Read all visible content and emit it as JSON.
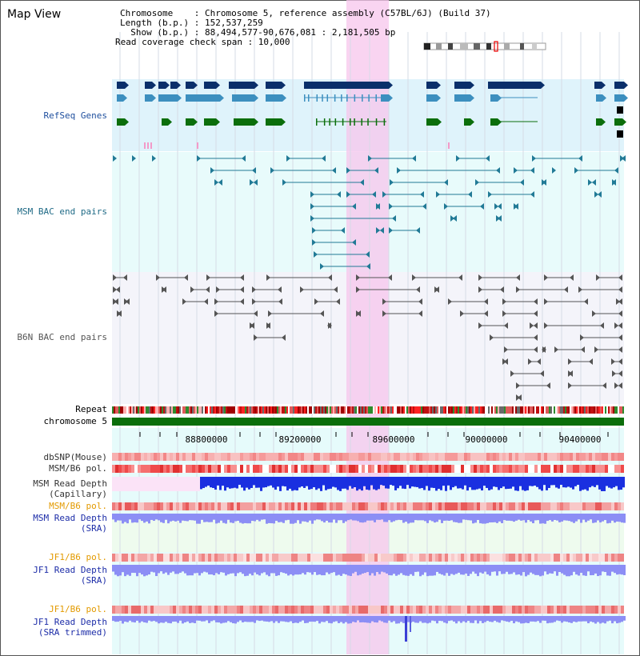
{
  "page": {
    "title": "Map View"
  },
  "info": {
    "line1": "Chromosome    : Chromosome 5, reference assembly (C57BL/6J) (Build 37)",
    "line2": "Length (b.p.) : 152,537,259",
    "line3": "  Show (b.p.) : 88,494,577-90,676,081 : 2,181,505 bp",
    "line4": "Read coverage check span : 10,000"
  },
  "tracks": {
    "refseq": "RefSeq Genes",
    "msm_bac": "MSM BAC end pairs",
    "b6n_bac": "B6N BAC end pairs",
    "repeat": "Repeat",
    "chromosome": "chromosome 5",
    "dbsnp": "dbSNP(Mouse)",
    "msm_b6_pol": "MSM/B6 pol.",
    "msm_depth_cap_1": "MSM Read Depth",
    "msm_depth_cap_2": "(Capillary)",
    "msm_b6_pol2": "MSM/B6 pol.",
    "msm_depth_sra_1": "MSM Read Depth",
    "msm_depth_sra_2": "(SRA)",
    "jf1_b6_pol": "JF1/B6 pol.",
    "jf1_depth_sra_1": "JF1 Read Depth",
    "jf1_depth_sra_2": "(SRA)",
    "jf1_b6_pol2": "JF1/B6 pol.",
    "jf1_depth_trim_1": "JF1 Read Depth",
    "jf1_depth_trim_2": "(SRA trimmed)"
  },
  "axis": {
    "ticks": [
      "88800000",
      "89200000",
      "89600000",
      "90000000",
      "90400000"
    ]
  },
  "colors": {
    "refseq_bg": "#dff3fb",
    "msm_bg": "#e8fbfb",
    "b6n_bg": "#f4f4fa",
    "highlight": "#f7c6ec",
    "gene_dark": "#0a2f6a",
    "gene_mid": "#3c8fbf",
    "gene_green": "#0b6e0b",
    "msm_bac": "#217a96",
    "b6n_bac": "#555555",
    "chrom_green": "#0b6e0b",
    "depth_blue": "#1a2fe0",
    "depth_light": "#8c8ef5",
    "label_blue": "#1f4f9e",
    "label_navy": "#1d2da8",
    "label_orange": "#e39a00",
    "label_teal": "#1f6a86"
  }
}
